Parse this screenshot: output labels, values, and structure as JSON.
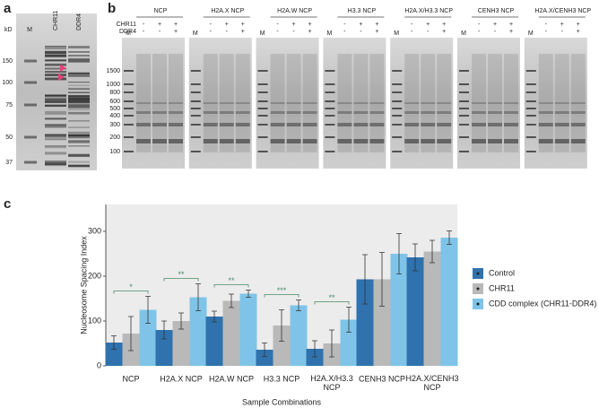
{
  "panel_a": {
    "letter": "a",
    "unit": "kD",
    "lanes": [
      "M",
      "CHR11",
      "DDR4"
    ],
    "markers": [
      "150",
      "100",
      "75",
      "50",
      "37"
    ]
  },
  "panel_b": {
    "letter": "b",
    "lane_m": "M",
    "groups": [
      "NCP",
      "H2A.X NCP",
      "H2A.W NCP",
      "H3.3 NCP",
      "H2A.X/H3.3 NCP",
      "CENH3 NCP",
      "H2A.X/CENH3 NCP"
    ],
    "rows": [
      {
        "label": "CHR11",
        "signs": [
          "-",
          "+",
          "+"
        ]
      },
      {
        "label": "DDR4",
        "signs": [
          "-",
          "-",
          "+"
        ]
      }
    ],
    "markers": [
      "1500",
      "1000",
      "800",
      "600",
      "500",
      "400",
      "300",
      "200",
      "100"
    ]
  },
  "chart_data": {
    "type": "bar",
    "panel_letter": "c",
    "x_label": "Sample Combinations",
    "y_label": "Nucleosome Spacing Index",
    "categories": [
      "NCP",
      "H2A.X NCP",
      "H2A.W NCP",
      "H3.3 NCP",
      "H2A.X/H3.3 NCP",
      "CENH3 NCP",
      "H2A.X/CENH3 NCP"
    ],
    "series": [
      {
        "name": "Control",
        "color": "#2f72ad",
        "values": [
          52,
          80,
          110,
          36,
          38,
          193,
          242
        ],
        "errors": [
          15,
          20,
          12,
          15,
          18,
          55,
          30
        ]
      },
      {
        "name": "CHR11",
        "color": "#b9b9b9",
        "values": [
          72,
          100,
          145,
          90,
          50,
          193,
          255
        ],
        "errors": [
          38,
          18,
          15,
          35,
          30,
          60,
          25
        ]
      },
      {
        "name": "CDD complex (CHR11-DDR4)",
        "color": "#7fc4e8",
        "values": [
          125,
          153,
          161,
          135,
          103,
          250,
          286
        ],
        "errors": [
          30,
          30,
          8,
          12,
          28,
          45,
          15
        ]
      }
    ],
    "significance": [
      {
        "category": 0,
        "label": "*"
      },
      {
        "category": 1,
        "label": "**"
      },
      {
        "category": 2,
        "label": "**"
      },
      {
        "category": 3,
        "label": "***"
      },
      {
        "category": 4,
        "label": "**"
      }
    ],
    "ylim": [
      0,
      360
    ],
    "yticks": [
      0,
      100,
      200,
      300
    ],
    "legend": "right"
  }
}
